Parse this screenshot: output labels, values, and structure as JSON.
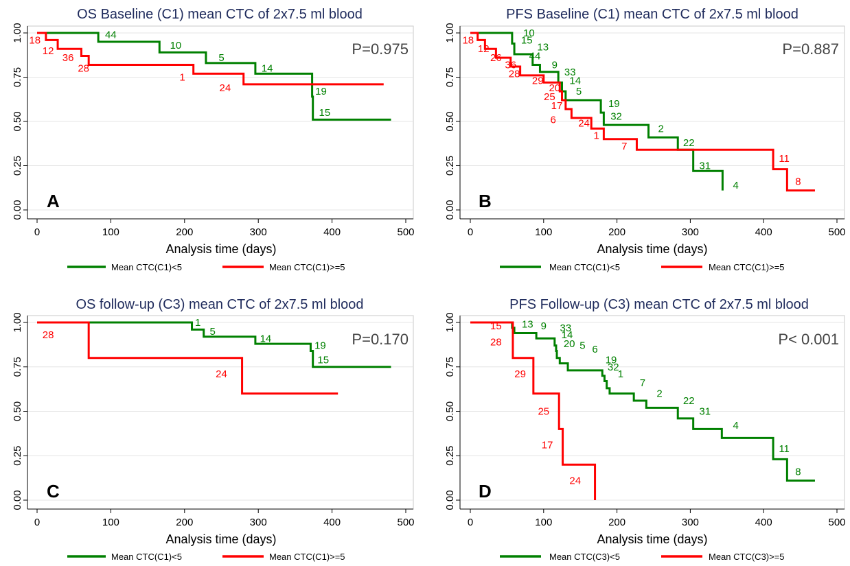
{
  "chart_data": [
    {
      "type": "line",
      "panel_label": "A",
      "title": "OS Baseline (C1) mean CTC of 2x7.5 ml blood",
      "xlabel": "Analysis time (days)",
      "ylabel": "",
      "p_value": "P=0.975",
      "xlim": [
        0,
        500
      ],
      "ylim": [
        0,
        1
      ],
      "xticks": [
        "0",
        "100",
        "200",
        "300",
        "400",
        "500"
      ],
      "yticks": [
        "0.00",
        "0.25",
        "0.50",
        "0.75",
        "1.00"
      ],
      "grid": true,
      "legend": [
        "Mean CTC(C1)<5",
        "Mean CTC(C1)>=5"
      ],
      "legend_position": "bottom",
      "colors": [
        "#008000",
        "#ff0000"
      ],
      "series": [
        {
          "name": "Mean CTC(C1)<5",
          "steps": [
            [
              0,
              1.0
            ],
            [
              83,
              0.95
            ],
            [
              166,
              0.89
            ],
            [
              229,
              0.83
            ],
            [
              296,
              0.77
            ],
            [
              373,
              0.64
            ],
            [
              374,
              0.51
            ],
            [
              480,
              0.51
            ]
          ],
          "labels": [
            {
              "text": "44",
              "x": 100,
              "y": 0.99
            },
            {
              "text": "10",
              "x": 188,
              "y": 0.93
            },
            {
              "text": "5",
              "x": 250,
              "y": 0.86
            },
            {
              "text": "14",
              "x": 312,
              "y": 0.8
            },
            {
              "text": "19",
              "x": 385,
              "y": 0.67
            },
            {
              "text": "15",
              "x": 390,
              "y": 0.55
            }
          ]
        },
        {
          "name": "Mean CTC(C1)>=5",
          "steps": [
            [
              0,
              1.0
            ],
            [
              12,
              0.96
            ],
            [
              28,
              0.91
            ],
            [
              60,
              0.87
            ],
            [
              70,
              0.82
            ],
            [
              212,
              0.77
            ],
            [
              280,
              0.71
            ],
            [
              470,
              0.71
            ]
          ],
          "labels": [
            {
              "text": "18",
              "x": -3,
              "y": 0.96
            },
            {
              "text": "12",
              "x": 15,
              "y": 0.9
            },
            {
              "text": "36",
              "x": 42,
              "y": 0.86
            },
            {
              "text": "28",
              "x": 63,
              "y": 0.8
            },
            {
              "text": "1",
              "x": 197,
              "y": 0.75
            },
            {
              "text": "24",
              "x": 255,
              "y": 0.69
            }
          ]
        }
      ]
    },
    {
      "type": "line",
      "panel_label": "B",
      "title": "PFS Baseline (C1) mean CTC of 2x7.5 ml blood",
      "xlabel": "Analysis time (days)",
      "ylabel": "",
      "p_value": "P=0.887",
      "xlim": [
        0,
        500
      ],
      "ylim": [
        0,
        1
      ],
      "xticks": [
        "0",
        "100",
        "200",
        "300",
        "400",
        "500"
      ],
      "yticks": [
        "0.00",
        "0.25",
        "0.50",
        "0.75",
        "1.00"
      ],
      "grid": true,
      "legend": [
        "Mean CTC(C1)<5",
        "Mean CTC(C1)>=5"
      ],
      "legend_position": "bottom",
      "colors": [
        "#008000",
        "#ff0000"
      ],
      "series": [
        {
          "name": "Mean CTC(C1)<5",
          "steps": [
            [
              0,
              1.0
            ],
            [
              57,
              0.94
            ],
            [
              60,
              0.88
            ],
            [
              85,
              0.82
            ],
            [
              95,
              0.78
            ],
            [
              120,
              0.72
            ],
            [
              125,
              0.67
            ],
            [
              130,
              0.62
            ],
            [
              178,
              0.55
            ],
            [
              182,
              0.48
            ],
            [
              243,
              0.41
            ],
            [
              283,
              0.34
            ],
            [
              304,
              0.22
            ],
            [
              344,
              0.11
            ]
          ],
          "labels": [
            {
              "text": "10",
              "x": 80,
              "y": 1.0
            },
            {
              "text": "15",
              "x": 77,
              "y": 0.96
            },
            {
              "text": "13",
              "x": 99,
              "y": 0.92
            },
            {
              "text": "44",
              "x": 88,
              "y": 0.87
            },
            {
              "text": "9",
              "x": 115,
              "y": 0.82
            },
            {
              "text": "33",
              "x": 136,
              "y": 0.78
            },
            {
              "text": "14",
              "x": 143,
              "y": 0.73
            },
            {
              "text": "5",
              "x": 148,
              "y": 0.67
            },
            {
              "text": "19",
              "x": 196,
              "y": 0.6
            },
            {
              "text": "32",
              "x": 199,
              "y": 0.53
            },
            {
              "text": "2",
              "x": 260,
              "y": 0.46
            },
            {
              "text": "22",
              "x": 298,
              "y": 0.38
            },
            {
              "text": "31",
              "x": 320,
              "y": 0.25
            },
            {
              "text": "4",
              "x": 362,
              "y": 0.14
            }
          ]
        },
        {
          "name": "Mean CTC(C1)>=5",
          "steps": [
            [
              0,
              1.0
            ],
            [
              10,
              0.96
            ],
            [
              20,
              0.91
            ],
            [
              35,
              0.86
            ],
            [
              55,
              0.81
            ],
            [
              68,
              0.76
            ],
            [
              100,
              0.72
            ],
            [
              122,
              0.67
            ],
            [
              125,
              0.62
            ],
            [
              130,
              0.57
            ],
            [
              138,
              0.52
            ],
            [
              165,
              0.46
            ],
            [
              182,
              0.4
            ],
            [
              227,
              0.34
            ],
            [
              413,
              0.23
            ],
            [
              432,
              0.11
            ],
            [
              470,
              0.11
            ]
          ],
          "labels": [
            {
              "text": "18",
              "x": -3,
              "y": 0.96
            },
            {
              "text": "12",
              "x": 18,
              "y": 0.91
            },
            {
              "text": "26",
              "x": 35,
              "y": 0.86
            },
            {
              "text": "36",
              "x": 55,
              "y": 0.82
            },
            {
              "text": "28",
              "x": 60,
              "y": 0.77
            },
            {
              "text": "29",
              "x": 92,
              "y": 0.73
            },
            {
              "text": "20",
              "x": 115,
              "y": 0.69
            },
            {
              "text": "25",
              "x": 108,
              "y": 0.64
            },
            {
              "text": "17",
              "x": 118,
              "y": 0.59
            },
            {
              "text": "6",
              "x": 113,
              "y": 0.51
            },
            {
              "text": "24",
              "x": 155,
              "y": 0.49
            },
            {
              "text": "1",
              "x": 172,
              "y": 0.42
            },
            {
              "text": "7",
              "x": 210,
              "y": 0.36
            },
            {
              "text": "11",
              "x": 428,
              "y": 0.29
            },
            {
              "text": "8",
              "x": 447,
              "y": 0.16
            }
          ]
        }
      ]
    },
    {
      "type": "line",
      "panel_label": "C",
      "title": "OS follow-up (C3) mean CTC of 2x7.5 ml blood",
      "xlabel": "Analysis time (days)",
      "ylabel": "",
      "p_value": "P=0.170",
      "xlim": [
        0,
        500
      ],
      "ylim": [
        0,
        1
      ],
      "xticks": [
        "0",
        "100",
        "200",
        "300",
        "400",
        "500"
      ],
      "yticks": [
        "0.00",
        "0.25",
        "0.50",
        "0.75",
        "1.00"
      ],
      "grid": true,
      "legend": [
        "Mean CTC(C1)<5",
        "Mean CTC(C1)>=5"
      ],
      "legend_position": "bottom",
      "colors": [
        "#008000",
        "#ff0000"
      ],
      "series": [
        {
          "name": "Mean CTC(C1)<5",
          "steps": [
            [
              0,
              1.0
            ],
            [
              210,
              0.96
            ],
            [
              226,
              0.92
            ],
            [
              296,
              0.88
            ],
            [
              371,
              0.84
            ],
            [
              374,
              0.75
            ],
            [
              480,
              0.75
            ]
          ],
          "labels": [
            {
              "text": "1",
              "x": 218,
              "y": 1.0
            },
            {
              "text": "5",
              "x": 238,
              "y": 0.95
            },
            {
              "text": "14",
              "x": 310,
              "y": 0.91
            },
            {
              "text": "19",
              "x": 384,
              "y": 0.87
            },
            {
              "text": "15",
              "x": 388,
              "y": 0.79
            }
          ]
        },
        {
          "name": "Mean CTC(C1)>=5",
          "steps": [
            [
              0,
              1.0
            ],
            [
              70,
              0.8
            ],
            [
              278,
              0.6
            ],
            [
              408,
              0.6
            ]
          ],
          "labels": [
            {
              "text": "28",
              "x": 15,
              "y": 0.93
            },
            {
              "text": "24",
              "x": 250,
              "y": 0.71
            }
          ]
        }
      ]
    },
    {
      "type": "line",
      "panel_label": "D",
      "title": "PFS Follow-up (C3)  mean CTC of 2x7.5 ml blood",
      "xlabel": "Analysis time (days)",
      "ylabel": "",
      "p_value": "P< 0.001",
      "xlim": [
        0,
        500
      ],
      "ylim": [
        0,
        1
      ],
      "xticks": [
        "0",
        "100",
        "200",
        "300",
        "400",
        "500"
      ],
      "yticks": [
        "0.00",
        "0.25",
        "0.50",
        "0.75",
        "1.00"
      ],
      "grid": true,
      "legend": [
        "Mean CTC(C3)<5",
        "Mean CTC(C3)>=5"
      ],
      "legend_position": "bottom",
      "colors": [
        "#008000",
        "#ff0000"
      ],
      "series": [
        {
          "name": "Mean CTC(C3)<5",
          "steps": [
            [
              0,
              1.0
            ],
            [
              57,
              0.97
            ],
            [
              60,
              0.94
            ],
            [
              90,
              0.91
            ],
            [
              115,
              0.87
            ],
            [
              117,
              0.84
            ],
            [
              118,
              0.8
            ],
            [
              122,
              0.77
            ],
            [
              133,
              0.73
            ],
            [
              180,
              0.7
            ],
            [
              183,
              0.67
            ],
            [
              186,
              0.63
            ],
            [
              190,
              0.6
            ],
            [
              223,
              0.56
            ],
            [
              240,
              0.52
            ],
            [
              283,
              0.46
            ],
            [
              304,
              0.4
            ],
            [
              343,
              0.35
            ],
            [
              413,
              0.23
            ],
            [
              432,
              0.11
            ],
            [
              470,
              0.11
            ]
          ],
          "labels": [
            {
              "text": "13",
              "x": 78,
              "y": 0.99
            },
            {
              "text": "9",
              "x": 100,
              "y": 0.98
            },
            {
              "text": "33",
              "x": 130,
              "y": 0.97
            },
            {
              "text": "14",
              "x": 132,
              "y": 0.93
            },
            {
              "text": "20",
              "x": 135,
              "y": 0.88
            },
            {
              "text": "5",
              "x": 153,
              "y": 0.87
            },
            {
              "text": "6",
              "x": 170,
              "y": 0.85
            },
            {
              "text": "19",
              "x": 192,
              "y": 0.79
            },
            {
              "text": "32",
              "x": 195,
              "y": 0.75
            },
            {
              "text": "1",
              "x": 205,
              "y": 0.71
            },
            {
              "text": "7",
              "x": 235,
              "y": 0.66
            },
            {
              "text": "2",
              "x": 258,
              "y": 0.6
            },
            {
              "text": "22",
              "x": 298,
              "y": 0.56
            },
            {
              "text": "31",
              "x": 320,
              "y": 0.5
            },
            {
              "text": "4",
              "x": 362,
              "y": 0.42
            },
            {
              "text": "11",
              "x": 428,
              "y": 0.29
            },
            {
              "text": "8",
              "x": 447,
              "y": 0.16
            }
          ]
        },
        {
          "name": "Mean CTC(C3)>=5",
          "steps": [
            [
              0,
              1.0
            ],
            [
              58,
              0.8
            ],
            [
              86,
              0.6
            ],
            [
              121,
              0.4
            ],
            [
              126,
              0.2
            ],
            [
              170,
              0.0
            ]
          ],
          "labels": [
            {
              "text": "15",
              "x": 35,
              "y": 0.98
            },
            {
              "text": "28",
              "x": 35,
              "y": 0.89
            },
            {
              "text": "29",
              "x": 68,
              "y": 0.71
            },
            {
              "text": "25",
              "x": 100,
              "y": 0.5
            },
            {
              "text": "17",
              "x": 105,
              "y": 0.31
            },
            {
              "text": "24",
              "x": 143,
              "y": 0.11
            }
          ]
        }
      ]
    }
  ]
}
